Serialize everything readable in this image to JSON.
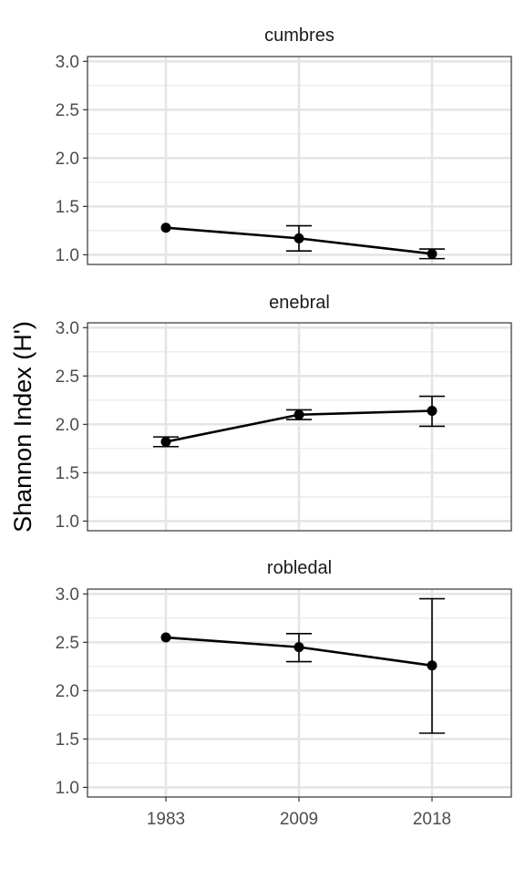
{
  "chart_data": {
    "type": "line",
    "ylabel": "Shannon Index (H')",
    "xlabel": "",
    "categories": [
      "1983",
      "2009",
      "2018"
    ],
    "ylim": [
      0.9,
      3.05
    ],
    "yticks": [
      "1.0",
      "1.5",
      "2.0",
      "2.5",
      "3.0"
    ],
    "grid": true,
    "legend": "none",
    "facets": [
      {
        "title": "cumbres",
        "values": [
          1.28,
          1.17,
          1.01
        ],
        "error_low": [
          1.28,
          1.04,
          0.96
        ],
        "error_high": [
          1.28,
          1.3,
          1.06
        ]
      },
      {
        "title": "enebral",
        "values": [
          1.82,
          2.1,
          2.14
        ],
        "error_low": [
          1.77,
          2.05,
          1.98
        ],
        "error_high": [
          1.87,
          2.15,
          2.29
        ]
      },
      {
        "title": "robledal",
        "values": [
          2.55,
          2.45,
          2.26
        ],
        "error_low": [
          2.55,
          2.3,
          1.56
        ],
        "error_high": [
          2.55,
          2.59,
          2.95
        ]
      }
    ]
  }
}
